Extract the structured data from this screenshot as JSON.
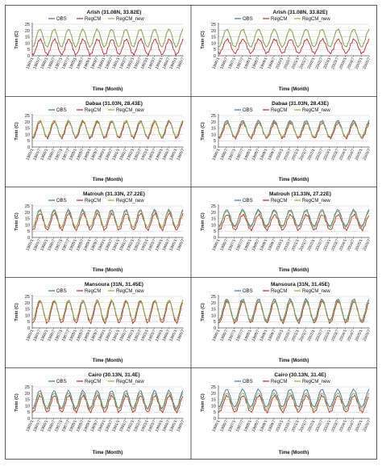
{
  "figure": {
    "legend_labels": [
      "OBS",
      "RegCM",
      "RegCM_new"
    ],
    "colors": {
      "OBS": "#3f6fb5",
      "RegCM": "#c0272d",
      "RegCM_new": "#8ab43c"
    }
  },
  "chart_data": [
    {
      "type": "line",
      "title": "Arish (31.08N, 33.82E)",
      "xlabel": "Time (Month)",
      "ylabel": "Tmin (C)",
      "ylim": [
        0,
        25
      ],
      "yticks": [
        0,
        5,
        10,
        15,
        20,
        25
      ],
      "period": "1985/1-1995/7",
      "x_tick_labels": [
        "1985/1",
        "1985/7",
        "1986/1",
        "1986/7",
        "1987/1",
        "1987/7",
        "1988/1",
        "1988/7",
        "1989/1",
        "1989/7",
        "1990/1",
        "1990/7",
        "1991/1",
        "1991/7",
        "1992/1",
        "1992/7",
        "1993/1",
        "1993/7",
        "1994/1",
        "1994/7",
        "1995/1",
        "1995/7"
      ],
      "legend": "top-right",
      "series": [
        {
          "name": "OBS",
          "min": 7,
          "max": 21
        },
        {
          "name": "RegCM",
          "min": 1,
          "max": 13
        },
        {
          "name": "RegCM_new",
          "min": 7,
          "max": 21
        }
      ]
    },
    {
      "type": "line",
      "title": "Arish (31.08N, 33.82E)",
      "xlabel": "Time (Month)",
      "ylabel": "Tmin (C)",
      "ylim": [
        0,
        25
      ],
      "yticks": [
        0,
        5,
        10,
        15,
        20,
        25
      ],
      "period": "1996/1-2005/7",
      "x_tick_labels": [
        "1996/1",
        "1996/7",
        "1997/1",
        "1997/7",
        "1998/1",
        "1998/7",
        "1999/1",
        "1999/7",
        "2000/1",
        "2000/7",
        "2001/1",
        "2001/7",
        "2002/1",
        "2002/7",
        "2003/1",
        "2003/7",
        "2004/1",
        "2004/7",
        "2005/1",
        "2005/7"
      ],
      "legend": "top-right",
      "series": [
        {
          "name": "OBS",
          "min": 7,
          "max": 21
        },
        {
          "name": "RegCM",
          "min": 2,
          "max": 13
        },
        {
          "name": "RegCM_new",
          "min": 7,
          "max": 21
        }
      ]
    },
    {
      "type": "line",
      "title": "Dabaa (31.03N, 28.43E)",
      "xlabel": "Time (Month)",
      "ylabel": "Tmin (C)",
      "ylim": [
        0,
        25
      ],
      "yticks": [
        0,
        5,
        10,
        15,
        20,
        25
      ],
      "period": "1985/1-1995/7",
      "x_tick_labels": [
        "1985/1",
        "1985/7",
        "1986/1",
        "1986/7",
        "1987/1",
        "1987/7",
        "1988/1",
        "1988/7",
        "1989/1",
        "1989/7",
        "1990/1",
        "1990/7",
        "1991/1",
        "1991/7",
        "1992/1",
        "1992/7",
        "1993/1",
        "1993/7",
        "1994/1",
        "1994/7",
        "1995/1",
        "1995/7"
      ],
      "legend": "top-right",
      "series": [
        {
          "name": "OBS",
          "min": 8,
          "max": 21
        },
        {
          "name": "RegCM",
          "min": 7,
          "max": 20
        },
        {
          "name": "RegCM_new",
          "min": 8,
          "max": 21
        }
      ]
    },
    {
      "type": "line",
      "title": "Dabaa (31.03N, 28.43E)",
      "xlabel": "Time (Month)",
      "ylabel": "Tmin (C)",
      "ylim": [
        0,
        25
      ],
      "yticks": [
        0,
        5,
        10,
        15,
        20,
        25
      ],
      "period": "1996/1-2005/7",
      "x_tick_labels": [
        "1996/1",
        "1996/7",
        "1997/1",
        "1997/7",
        "1998/1",
        "1998/7",
        "1999/1",
        "1999/7",
        "2000/1",
        "2000/7",
        "2001/1",
        "2001/7",
        "2002/1",
        "2002/7",
        "2003/1",
        "2003/7",
        "2004/1",
        "2004/7",
        "2005/1",
        "2005/7"
      ],
      "legend": "top-right",
      "series": [
        {
          "name": "OBS",
          "min": 8,
          "max": 21
        },
        {
          "name": "RegCM",
          "min": 7,
          "max": 19
        },
        {
          "name": "RegCM_new",
          "min": 8,
          "max": 20
        }
      ]
    },
    {
      "type": "line",
      "title": "Matrouh (31.33N, 27.22E)",
      "xlabel": "Time (Month)",
      "ylabel": "Tmin (C)",
      "ylim": [
        0,
        25
      ],
      "yticks": [
        0,
        5,
        10,
        15,
        20,
        25
      ],
      "period": "1985/1-1995/7",
      "x_tick_labels": [
        "1985/1",
        "1985/7",
        "1986/1",
        "1986/7",
        "1987/1",
        "1987/7",
        "1988/1",
        "1988/7",
        "1989/1",
        "1989/7",
        "1990/1",
        "1990/7",
        "1991/1",
        "1991/7",
        "1992/1",
        "1992/7",
        "1993/1",
        "1993/7",
        "1994/1",
        "1994/7",
        "1995/1",
        "1995/7"
      ],
      "legend": "top-right",
      "series": [
        {
          "name": "OBS",
          "min": 8,
          "max": 22
        },
        {
          "name": "RegCM",
          "min": 6,
          "max": 19
        },
        {
          "name": "RegCM_new",
          "min": 8,
          "max": 21
        }
      ]
    },
    {
      "type": "line",
      "title": "Matrouh (31.33N, 27.22E)",
      "xlabel": "Time (Month)",
      "ylabel": "Tmin (C)",
      "ylim": [
        0,
        25
      ],
      "yticks": [
        0,
        5,
        10,
        15,
        20,
        25
      ],
      "period": "1996/1-2005/7",
      "x_tick_labels": [
        "1996/1",
        "1996/7",
        "1997/1",
        "1997/7",
        "1998/1",
        "1998/7",
        "1999/1",
        "1999/7",
        "2000/1",
        "2000/7",
        "2001/1",
        "2001/7",
        "2002/1",
        "2002/7",
        "2003/1",
        "2003/7",
        "2004/1",
        "2004/7",
        "2005/1",
        "2005/7"
      ],
      "legend": "top-right",
      "series": [
        {
          "name": "OBS",
          "min": 9,
          "max": 22
        },
        {
          "name": "RegCM",
          "min": 6,
          "max": 18
        },
        {
          "name": "RegCM_new",
          "min": 8,
          "max": 21
        }
      ]
    },
    {
      "type": "line",
      "title": "Mansoura (31N, 31.45E)",
      "xlabel": "Time (Month)",
      "ylabel": "Tmin (C)",
      "ylim": [
        0,
        25
      ],
      "yticks": [
        0,
        5,
        10,
        15,
        20,
        25
      ],
      "period": "1985/1-1995/7",
      "x_tick_labels": [
        "1985/1",
        "1985/7",
        "1986/1",
        "1986/7",
        "1987/1",
        "1987/7",
        "1988/1",
        "1988/7",
        "1989/1",
        "1989/7",
        "1990/1",
        "1990/7",
        "1991/1",
        "1991/7",
        "1992/1",
        "1992/7",
        "1993/1",
        "1993/7",
        "1994/1",
        "1994/7",
        "1995/1",
        "1995/7"
      ],
      "legend": "top-right",
      "series": [
        {
          "name": "OBS",
          "min": 6,
          "max": 22
        },
        {
          "name": "RegCM",
          "min": 4,
          "max": 21
        },
        {
          "name": "RegCM_new",
          "min": 6,
          "max": 22
        }
      ]
    },
    {
      "type": "line",
      "title": "Mansoura (31N, 31.45E)",
      "xlabel": "Time (Month)",
      "ylabel": "Tmin (C)",
      "ylim": [
        0,
        25
      ],
      "yticks": [
        0,
        5,
        10,
        15,
        20,
        25
      ],
      "period": "1996/1-2005/7",
      "x_tick_labels": [
        "1996/1",
        "1996/7",
        "1997/1",
        "1997/7",
        "1998/1",
        "1998/7",
        "1999/1",
        "1999/7",
        "2000/1",
        "2000/7",
        "2001/1",
        "2001/7",
        "2002/1",
        "2002/7",
        "2003/1",
        "2003/7",
        "2004/1",
        "2004/7",
        "2005/1",
        "2005/7"
      ],
      "legend": "top-right",
      "series": [
        {
          "name": "OBS",
          "min": 6,
          "max": 23
        },
        {
          "name": "RegCM",
          "min": 4,
          "max": 21
        },
        {
          "name": "RegCM_new",
          "min": 5,
          "max": 22
        }
      ]
    },
    {
      "type": "line",
      "title": "Cairo (30.13N, 31.4E)",
      "xlabel": "Time (Month)",
      "ylabel": "Tmin (C)",
      "ylim": [
        0,
        25
      ],
      "yticks": [
        0,
        5,
        10,
        15,
        20,
        25
      ],
      "period": "1985/1-1995/7",
      "x_tick_labels": [
        "1985/1",
        "1985/7",
        "1986/1",
        "1986/7",
        "1987/1",
        "1987/7",
        "1988/1",
        "1988/7",
        "1989/1",
        "1989/7",
        "1990/1",
        "1990/7",
        "1991/1",
        "1991/7",
        "1992/1",
        "1992/7",
        "1993/1",
        "1993/7",
        "1994/1",
        "1994/7",
        "1995/1",
        "1995/7"
      ],
      "legend": "top-right",
      "series": [
        {
          "name": "OBS",
          "min": 8,
          "max": 22
        },
        {
          "name": "RegCM",
          "min": 5,
          "max": 18
        },
        {
          "name": "RegCM_new",
          "min": 7,
          "max": 20
        }
      ]
    },
    {
      "type": "line",
      "title": "Cairo (30.13N, 31.4E)",
      "xlabel": "Time (Month)",
      "ylabel": "Tmin (C)",
      "ylim": [
        0,
        25
      ],
      "yticks": [
        0,
        5,
        10,
        15,
        20,
        25
      ],
      "period": "1996/1-2005/7",
      "x_tick_labels": [
        "1996/1",
        "1996/7",
        "1997/1",
        "1997/7",
        "1998/1",
        "1998/7",
        "1999/1",
        "1999/7",
        "2000/1",
        "2000/7",
        "2001/1",
        "2001/7",
        "2002/1",
        "2002/7",
        "2003/1",
        "2003/7",
        "2004/1",
        "2004/7",
        "2005/1",
        "2005/7"
      ],
      "legend": "top-right",
      "series": [
        {
          "name": "OBS",
          "min": 9,
          "max": 23
        },
        {
          "name": "RegCM",
          "min": 5,
          "max": 18
        },
        {
          "name": "RegCM_new",
          "min": 7,
          "max": 20
        }
      ]
    }
  ]
}
